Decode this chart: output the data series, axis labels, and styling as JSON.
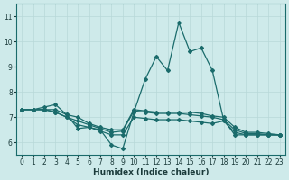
{
  "xlabel": "Humidex (Indice chaleur)",
  "background_color": "#ceeaea",
  "grid_color": "#b8d8d8",
  "line_color": "#1a6b6b",
  "xlim": [
    -0.5,
    23.5
  ],
  "ylim": [
    5.5,
    11.5
  ],
  "yticks": [
    6,
    7,
    8,
    9,
    10,
    11
  ],
  "xticks": [
    0,
    1,
    2,
    3,
    4,
    5,
    6,
    7,
    8,
    9,
    10,
    11,
    12,
    13,
    14,
    15,
    16,
    17,
    18,
    19,
    20,
    21,
    22,
    23
  ],
  "lines": [
    [
      7.3,
      7.3,
      7.4,
      7.5,
      7.1,
      6.55,
      6.6,
      6.5,
      5.9,
      5.75,
      7.2,
      8.5,
      9.4,
      8.85,
      10.75,
      9.6,
      9.75,
      8.85,
      6.9,
      6.3,
      6.3,
      6.3,
      6.3,
      6.3
    ],
    [
      7.3,
      7.3,
      7.3,
      7.2,
      7.0,
      6.85,
      6.7,
      6.55,
      6.4,
      6.45,
      7.25,
      7.2,
      7.15,
      7.15,
      7.15,
      7.1,
      7.05,
      7.0,
      6.9,
      6.5,
      6.35,
      6.35,
      6.3,
      6.3
    ],
    [
      7.3,
      7.3,
      7.3,
      7.2,
      7.0,
      6.7,
      6.6,
      6.45,
      6.3,
      6.3,
      7.0,
      6.95,
      6.9,
      6.9,
      6.9,
      6.85,
      6.8,
      6.75,
      6.85,
      6.4,
      6.3,
      6.3,
      6.3,
      6.3
    ],
    [
      7.3,
      7.3,
      7.3,
      7.3,
      7.1,
      7.0,
      6.75,
      6.6,
      6.5,
      6.5,
      7.3,
      7.25,
      7.2,
      7.2,
      7.2,
      7.2,
      7.15,
      7.05,
      7.0,
      6.6,
      6.4,
      6.4,
      6.35,
      6.3
    ]
  ],
  "marker": "D",
  "markersize": 2.0,
  "linewidth": 0.9,
  "tick_fontsize": 5.5,
  "xlabel_fontsize": 6.5
}
